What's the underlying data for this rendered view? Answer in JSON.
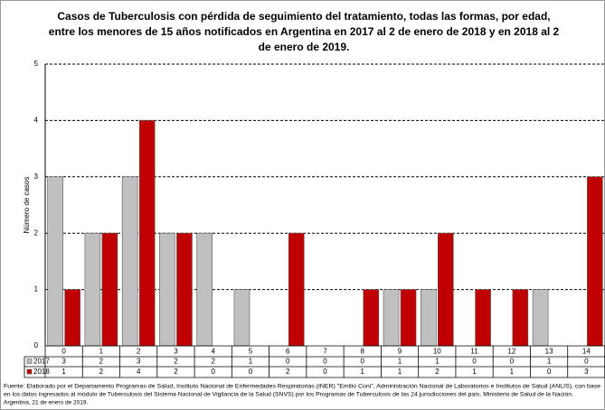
{
  "chart_data": {
    "type": "bar",
    "title": [
      "Casos de Tuberculosis con pérdida de seguimiento del tratamiento, todas las formas, por edad,",
      "entre los menores de 15 años notificados en Argentina en 2017 al 2 de enero de 2018 y en 2018 al 2",
      "de enero de 2019."
    ],
    "y_label": "Número de casos",
    "categories": [
      "0",
      "1",
      "2",
      "3",
      "4",
      "5",
      "6",
      "7",
      "8",
      "9",
      "10",
      "11",
      "12",
      "13",
      "14"
    ],
    "series": [
      {
        "name": "2017",
        "color": "#c0c0c0",
        "values": [
          3,
          2,
          3,
          2,
          2,
          1,
          0,
          0,
          0,
          1,
          1,
          0,
          0,
          1,
          0
        ]
      },
      {
        "name": "2018",
        "color": "#c00000",
        "values": [
          1,
          2,
          4,
          2,
          0,
          0,
          2,
          0,
          1,
          1,
          2,
          1,
          1,
          0,
          3
        ]
      }
    ],
    "ylim": [
      0,
      5
    ],
    "yticks": [
      0,
      1,
      2,
      3,
      4,
      5
    ],
    "grid": true,
    "footnote": [
      "Fuente: Elaborado por el Departamento Programas de Salud, Instituto Nacional de Enfermedades Respiratorias (INER) \"Emilio Coni\", Administración Nacional de Laboratorios e Institutos de Salud (ANLIS), con base",
      "en los datos ingresados al módulo de Tuberculosis del Sistema Nacional de Vigilancia de la Salud (SNVS) por los Programas de Tuberculosis de las 24 jurisdicciones del país. Ministerio de Salud de la Nación.",
      "Argentina,  21 de enero de 2019."
    ]
  }
}
